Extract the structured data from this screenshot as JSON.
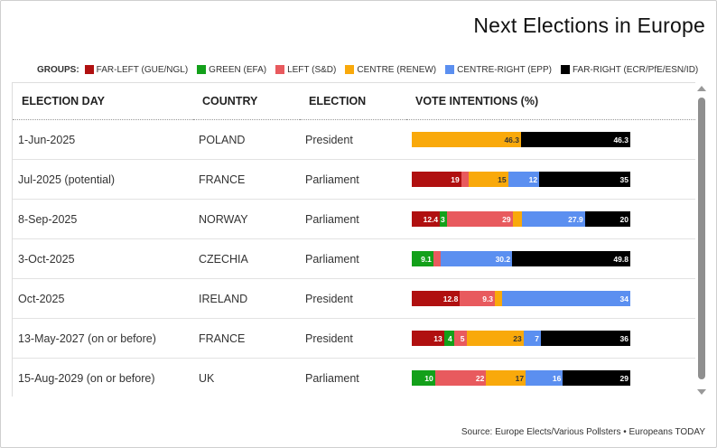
{
  "title": "Next Elections in Europe",
  "legend": {
    "label": "GROUPS:",
    "items": [
      {
        "key": "far_left",
        "label": "FAR-LEFT (GUE/NGL)",
        "color": "#b01010"
      },
      {
        "key": "green",
        "label": "GREEN (EFA)",
        "color": "#13a01a"
      },
      {
        "key": "left",
        "label": "LEFT (S&D)",
        "color": "#e85a5e"
      },
      {
        "key": "centre",
        "label": "CENTRE (RENEW)",
        "color": "#f9a90b"
      },
      {
        "key": "centre_right",
        "label": "CENTRE-RIGHT (EPP)",
        "color": "#5b8ff0"
      },
      {
        "key": "far_right",
        "label": "FAR-RIGHT (ECR/PfE/ESN/ID)",
        "color": "#000000"
      }
    ]
  },
  "table": {
    "headers": [
      "ELECTION DAY",
      "COUNTRY",
      "ELECTION",
      "VOTE INTENTIONS (%)"
    ]
  },
  "chart_data": {
    "type": "bar",
    "stacked": true,
    "orientation": "horizontal",
    "categories": [
      "1-Jun-2025",
      "Jul-2025 (potential)",
      "8-Sep-2025",
      "3-Oct-2025",
      "Oct-2025",
      "13-May-2027 (on or before)",
      "15-Aug-2029 (on or before)"
    ],
    "rows": [
      {
        "day": "1-Jun-2025",
        "country": "POLAND",
        "election": "President",
        "values": {
          "far_left": 0,
          "green": 0,
          "left": 0,
          "centre": 46.3,
          "centre_right": 0,
          "far_right": 46.3
        },
        "labels": {
          "centre": "46.3",
          "far_right": "46.3"
        }
      },
      {
        "day": "Jul-2025 (potential)",
        "country": "FRANCE",
        "election": "Parliament",
        "values": {
          "far_left": 19,
          "green": 0,
          "left": 3,
          "centre": 15,
          "centre_right": 12,
          "far_right": 35
        },
        "labels": {
          "far_left": "19",
          "centre": "15",
          "centre_right": "12",
          "far_right": "35"
        }
      },
      {
        "day": "8-Sep-2025",
        "country": "NORWAY",
        "election": "Parliament",
        "values": {
          "far_left": 12.4,
          "green": 3,
          "left": 29,
          "centre": 4,
          "centre_right": 27.9,
          "far_right": 20
        },
        "labels": {
          "far_left": "12.4",
          "green": "3",
          "left": "29",
          "centre_right": "27.9",
          "far_right": "20"
        }
      },
      {
        "day": "3-Oct-2025",
        "country": "CZECHIA",
        "election": "Parliament",
        "values": {
          "far_left": 0,
          "green": 9.1,
          "left": 3,
          "centre": 0,
          "centre_right": 30.2,
          "far_right": 49.8
        },
        "labels": {
          "green": "9.1",
          "centre_right": "30.2",
          "far_right": "49.8"
        }
      },
      {
        "day": "Oct-2025",
        "country": "IRELAND",
        "election": "President",
        "values": {
          "far_left": 12.8,
          "green": 0,
          "left": 9.3,
          "centre": 2,
          "centre_right": 34,
          "far_right": 0
        },
        "labels": {
          "far_left": "12.8",
          "left": "9.3",
          "centre_right": "34"
        }
      },
      {
        "day": "13-May-2027 (on or before)",
        "country": "FRANCE",
        "election": "President",
        "values": {
          "far_left": 13,
          "green": 4,
          "left": 5,
          "centre": 23,
          "centre_right": 7,
          "far_right": 36
        },
        "labels": {
          "far_left": "13",
          "green": "4",
          "left": "5",
          "centre": "23",
          "centre_right": "7",
          "far_right": "36"
        }
      },
      {
        "day": "15-Aug-2029 (on or before)",
        "country": "UK",
        "election": "Parliament",
        "values": {
          "far_left": 0,
          "green": 10,
          "left": 22,
          "centre": 17,
          "centre_right": 16,
          "far_right": 29
        },
        "labels": {
          "green": "10",
          "left": "22",
          "centre": "17",
          "centre_right": "16",
          "far_right": "29"
        }
      }
    ]
  },
  "source": "Source: Europe Elects/Various Pollsters • Europeans TODAY"
}
